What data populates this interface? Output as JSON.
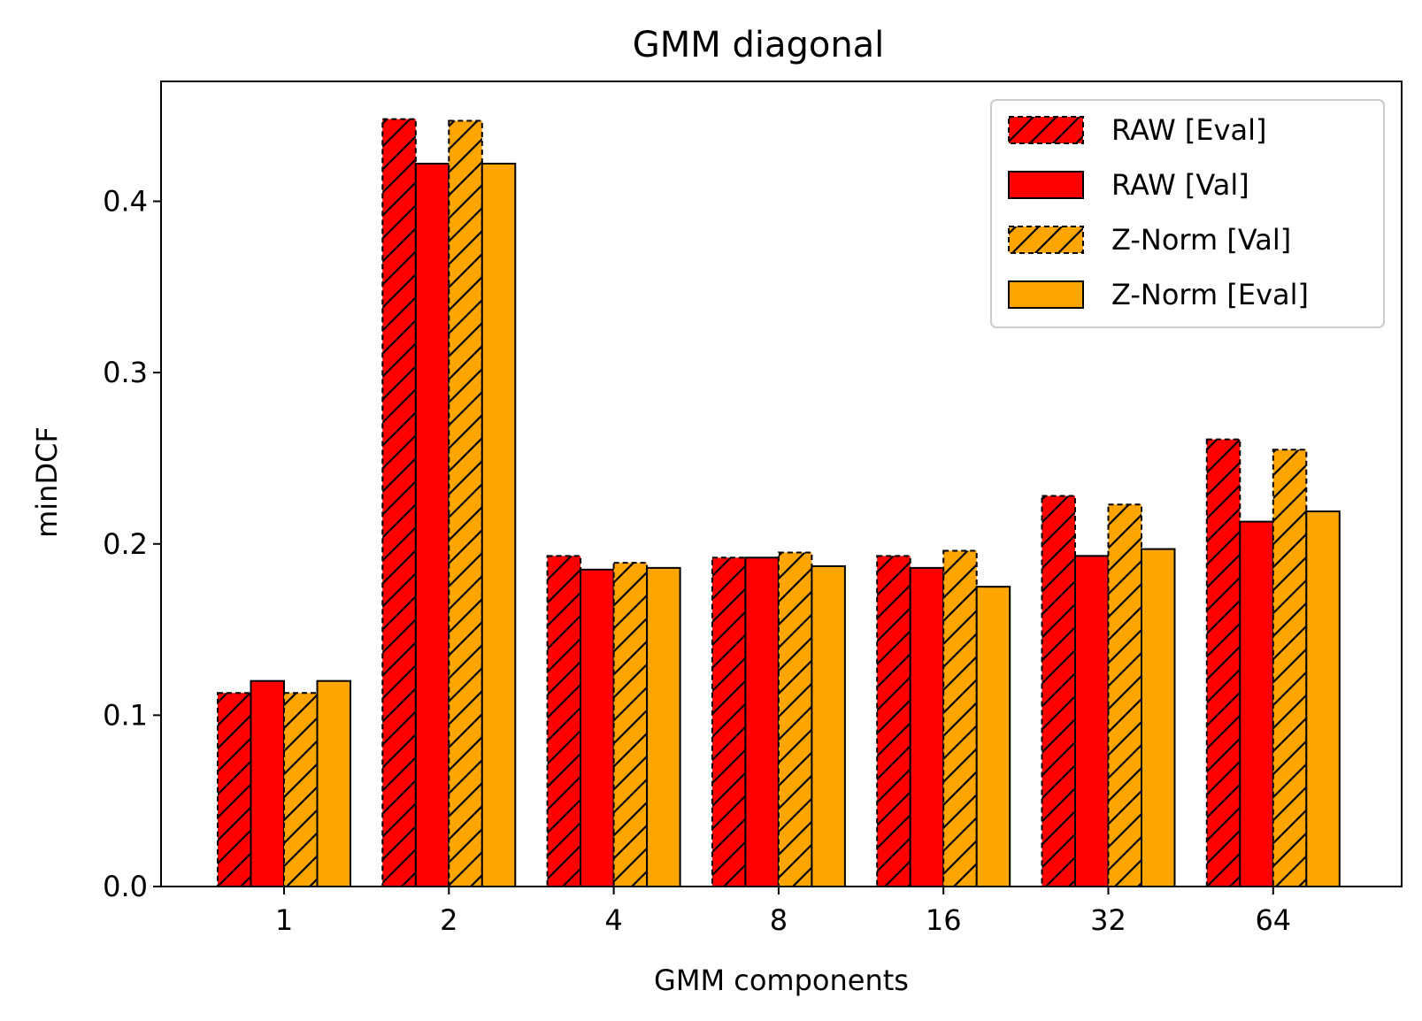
{
  "chart_data": {
    "type": "bar",
    "title": "GMM diagonal",
    "xlabel": "GMM components",
    "ylabel": "minDCF",
    "categories": [
      "1",
      "2",
      "4",
      "8",
      "16",
      "32",
      "64"
    ],
    "ylim": [
      0,
      0.47
    ],
    "yticks": [
      "0.0",
      "0.1",
      "0.2",
      "0.3",
      "0.4"
    ],
    "grid": false,
    "legend_position": "top-right",
    "series": [
      {
        "name": "RAW [Eval]",
        "color": "#ff0000",
        "hatch": true,
        "dashed": true,
        "values": [
          0.113,
          0.448,
          0.193,
          0.192,
          0.193,
          0.228,
          0.261
        ]
      },
      {
        "name": "RAW [Val]",
        "color": "#ff0000",
        "hatch": false,
        "dashed": false,
        "values": [
          0.12,
          0.422,
          0.185,
          0.192,
          0.186,
          0.193,
          0.213
        ]
      },
      {
        "name": "Z-Norm [Val]",
        "color": "#ffa500",
        "hatch": true,
        "dashed": true,
        "values": [
          0.113,
          0.447,
          0.189,
          0.195,
          0.196,
          0.223,
          0.255
        ]
      },
      {
        "name": "Z-Norm [Eval]",
        "color": "#ffa500",
        "hatch": false,
        "dashed": false,
        "values": [
          0.12,
          0.422,
          0.186,
          0.187,
          0.175,
          0.197,
          0.219
        ]
      }
    ]
  }
}
